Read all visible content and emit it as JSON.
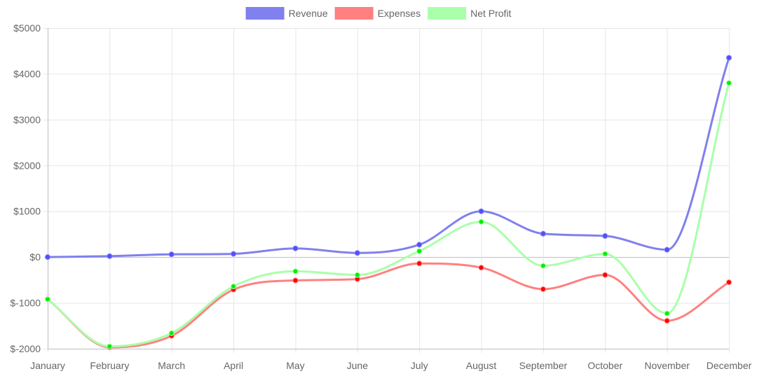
{
  "chart_data": {
    "type": "line",
    "title": "",
    "xlabel": "",
    "ylabel": "",
    "categories": [
      "January",
      "February",
      "March",
      "April",
      "May",
      "June",
      "July",
      "August",
      "September",
      "October",
      "November",
      "December"
    ],
    "ylim": [
      -2000,
      5000
    ],
    "yticks": [
      5000,
      4000,
      3000,
      2000,
      1000,
      0,
      -1000,
      -2000
    ],
    "ytick_labels": [
      "$5000",
      "$4000",
      "$3000",
      "$2000",
      "$1000",
      "$0",
      "$-1000",
      "$-2000"
    ],
    "grid": true,
    "legend_position": "top-center",
    "series": [
      {
        "name": "Revenue",
        "color": "#8080ee",
        "point_color": "#5050ff",
        "values": [
          0,
          20,
          60,
          70,
          190,
          90,
          270,
          1000,
          510,
          460,
          160,
          4350
        ]
      },
      {
        "name": "Expenses",
        "color": "#ff8080",
        "point_color": "#ff0000",
        "values": [
          -920,
          -1970,
          -1720,
          -710,
          -510,
          -480,
          -140,
          -230,
          -700,
          -390,
          -1390,
          -550
        ]
      },
      {
        "name": "Net Profit",
        "color": "#aaffaa",
        "point_color": "#00ee00",
        "values": [
          -920,
          -1950,
          -1660,
          -640,
          -310,
          -390,
          130,
          770,
          -190,
          70,
          -1230,
          3800
        ]
      }
    ]
  }
}
